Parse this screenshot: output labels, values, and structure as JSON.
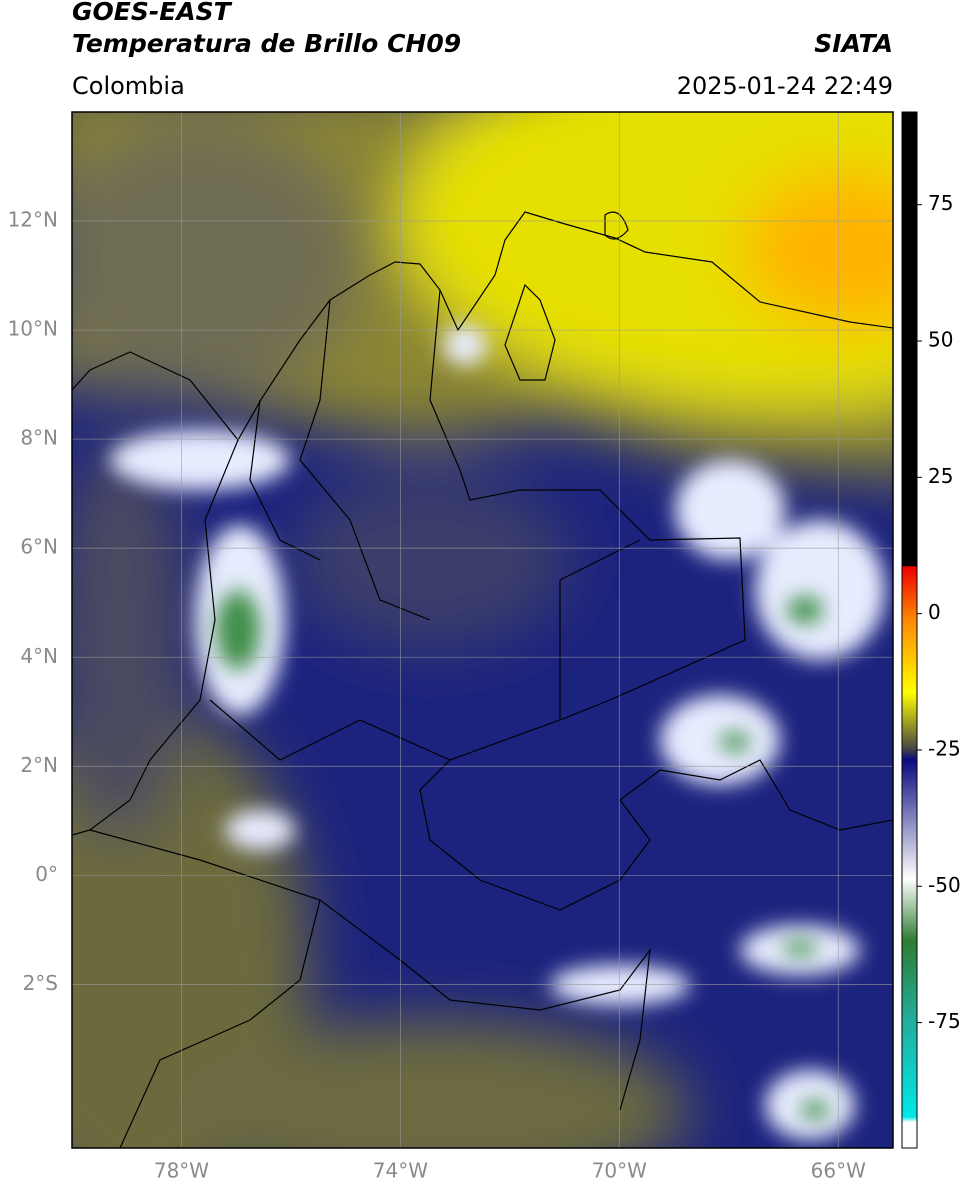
{
  "header": {
    "title": "GOES-EAST",
    "subtitle": "Temperatura de Brillo CH09",
    "source": "SIATA",
    "region": "Colombia",
    "datetime": "2025-01-24 22:49"
  },
  "map": {
    "type": "map",
    "xlim": [
      -80,
      -65
    ],
    "ylim": [
      -5,
      14
    ],
    "xticks": [
      {
        "value": -78,
        "label": "78°W"
      },
      {
        "value": -74,
        "label": "74°W"
      },
      {
        "value": -70,
        "label": "70°W"
      },
      {
        "value": -66,
        "label": "66°W"
      }
    ],
    "yticks": [
      {
        "value": 12,
        "label": "12°N"
      },
      {
        "value": 10,
        "label": "10°N"
      },
      {
        "value": 8,
        "label": "8°N"
      },
      {
        "value": 6,
        "label": "6°N"
      },
      {
        "value": 4,
        "label": "4°N"
      },
      {
        "value": 2,
        "label": "2°N"
      },
      {
        "value": 0,
        "label": "0°"
      },
      {
        "value": -2,
        "label": "2°S"
      }
    ],
    "grid": true
  },
  "colorbar": {
    "clim": [
      -98,
      92
    ],
    "ticks": [
      75,
      50,
      25,
      0,
      -25,
      -50,
      -75
    ]
  }
}
